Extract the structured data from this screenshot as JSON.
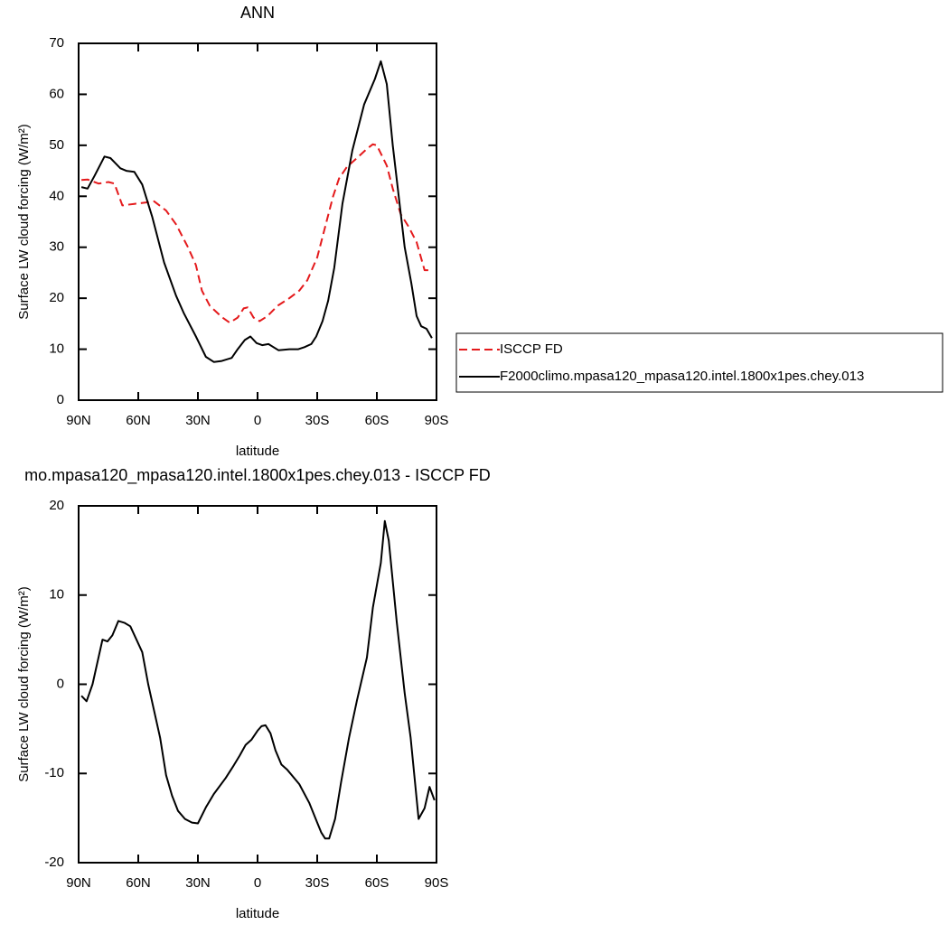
{
  "chart_data": [
    {
      "type": "line",
      "title": "ANN",
      "xlabel": "latitude",
      "ylabel": "Surface LW cloud forcing (W/m²)",
      "xlim": [
        90,
        -90
      ],
      "ylim": [
        0,
        70
      ],
      "xticks": [
        {
          "value": 90,
          "label": "90N"
        },
        {
          "value": 60,
          "label": "60N"
        },
        {
          "value": 30,
          "label": "30N"
        },
        0,
        {
          "value": -30,
          "label": "30S"
        },
        {
          "value": -60,
          "label": "60S"
        },
        {
          "value": -90,
          "label": "90S"
        }
      ],
      "yticks": [
        0,
        10,
        20,
        30,
        40,
        50,
        60,
        70
      ],
      "legend": "right",
      "series": [
        {
          "name": "ISCCP FD",
          "color": "#e41a1c",
          "dash": "dashed",
          "x": [
            88.6,
            85.5,
            80,
            75,
            72,
            68,
            62,
            56,
            52,
            46,
            41,
            35,
            31,
            28,
            24,
            18,
            14,
            10,
            7,
            5,
            2,
            -1,
            -5,
            -10,
            -16,
            -21,
            -25,
            -30,
            -34,
            -38,
            -41,
            -45,
            -50,
            -55,
            -58,
            -60,
            -65,
            -68,
            -72,
            -76,
            -80,
            -84,
            -88
          ],
          "values": [
            43.2,
            43.3,
            42.5,
            42.8,
            42.5,
            38.2,
            38.5,
            38.8,
            39,
            37.2,
            34.5,
            30,
            26.5,
            21.5,
            18.5,
            16.3,
            15.2,
            16.2,
            18,
            18.2,
            16.2,
            15.5,
            16.5,
            18.5,
            20,
            21.5,
            23.5,
            28,
            34,
            40,
            43.5,
            45.8,
            47.5,
            49.3,
            50.2,
            50,
            46,
            41.5,
            36.5,
            34,
            31,
            25.5,
            25.5
          ]
        },
        {
          "name": "F2000climo.mpasa120_mpasa120.intel.1800x1pes.chey.013",
          "color": "#000000",
          "dash": "solid",
          "x": [
            88.6,
            85.5,
            82,
            77,
            74,
            69,
            66,
            62,
            58,
            53,
            47,
            41,
            37,
            31,
            26,
            22,
            18,
            13,
            10,
            6.4,
            3.6,
            0.5,
            -2.3,
            -5.5,
            -10.5,
            -16,
            -20.5,
            -23.6,
            -27,
            -29.5,
            -32.7,
            -35.5,
            -38.6,
            -42.7,
            -47.7,
            -53.6,
            -59,
            -62,
            -65,
            -68,
            -74,
            -77.3,
            -80,
            -82.3,
            -85,
            -87.7
          ],
          "values": [
            41.8,
            41.5,
            44,
            47.8,
            47.5,
            45.5,
            45,
            44.8,
            42.3,
            36,
            27,
            20.5,
            17,
            12.5,
            8.5,
            7.5,
            7.7,
            8.3,
            10,
            11.8,
            12.5,
            11.2,
            10.8,
            11,
            9.8,
            10,
            10,
            10.4,
            11,
            12.5,
            15.5,
            19.5,
            26,
            38.5,
            49,
            58,
            63,
            66.5,
            62,
            50,
            30,
            23,
            16.5,
            14.5,
            14,
            12.2
          ]
        }
      ]
    },
    {
      "type": "line",
      "title": "mo.mpasa120_mpasa120.intel.1800x1pes.chey.013 - ISCCP FD",
      "xlabel": "latitude",
      "ylabel": "Surface LW cloud forcing (W/m²)",
      "xlim": [
        90,
        -90
      ],
      "ylim": [
        -20,
        20
      ],
      "xticks": [
        {
          "value": 90,
          "label": "90N"
        },
        {
          "value": 60,
          "label": "60N"
        },
        {
          "value": 30,
          "label": "30N"
        },
        0,
        {
          "value": -30,
          "label": "30S"
        },
        {
          "value": -60,
          "label": "60S"
        },
        {
          "value": -90,
          "label": "90S"
        }
      ],
      "yticks": [
        -20,
        -10,
        0,
        10,
        20
      ],
      "series": [
        {
          "color": "#000000",
          "dash": "solid",
          "x": [
            88.6,
            86,
            83,
            80,
            78,
            75.5,
            73,
            70,
            67,
            64,
            58,
            55,
            49,
            46,
            43,
            40,
            36.5,
            33,
            30,
            26,
            22,
            16,
            12,
            9,
            6,
            3,
            0,
            -2,
            -4,
            -6.5,
            -9,
            -12,
            -15,
            -21,
            -26,
            -30,
            -32,
            -34,
            -36,
            -39,
            -42,
            -46,
            -50,
            -55,
            -58,
            -62,
            -64,
            -66,
            -70,
            -74,
            -77,
            -81,
            -84,
            -86.5,
            -89
          ],
          "values": [
            -1.3,
            -1.9,
            0,
            3,
            5,
            4.8,
            5.5,
            7.1,
            6.9,
            6.5,
            3.6,
            0,
            -6,
            -10.2,
            -12.5,
            -14.2,
            -15.1,
            -15.5,
            -15.6,
            -13.8,
            -12.3,
            -10.5,
            -9.1,
            -8,
            -6.8,
            -6.2,
            -5.2,
            -4.7,
            -4.6,
            -5.5,
            -7.4,
            -9,
            -9.6,
            -11.2,
            -13.3,
            -15.5,
            -16.6,
            -17.3,
            -17.3,
            -15.1,
            -11,
            -6,
            -1.8,
            3,
            8.6,
            13.6,
            18.3,
            16.1,
            7,
            -1,
            -6,
            -15.1,
            -13.9,
            -11.5,
            -13
          ]
        }
      ]
    }
  ]
}
